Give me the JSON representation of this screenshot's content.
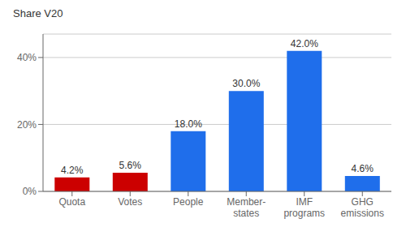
{
  "chart_data": {
    "type": "bar",
    "ylabel": "Share V20",
    "categories": [
      "Quota",
      "Votes",
      "People",
      "Member-\nstates",
      "IMF\nprograms",
      "GHG\nemissions"
    ],
    "values": [
      4.2,
      5.6,
      18.0,
      30.0,
      42.0,
      4.6
    ],
    "value_labels": [
      "4.2%",
      "5.6%",
      "18.0%",
      "30.0%",
      "42.0%",
      "4.6%"
    ],
    "colors": [
      "#cc0000",
      "#cc0000",
      "#1f6eeb",
      "#1f6eeb",
      "#1f6eeb",
      "#1f6eeb"
    ],
    "ylim": [
      0,
      47
    ],
    "yticks": [
      {
        "value": 0,
        "label": "0%"
      },
      {
        "value": 20,
        "label": "20%"
      },
      {
        "value": 40,
        "label": "40%"
      }
    ],
    "grid": true
  }
}
